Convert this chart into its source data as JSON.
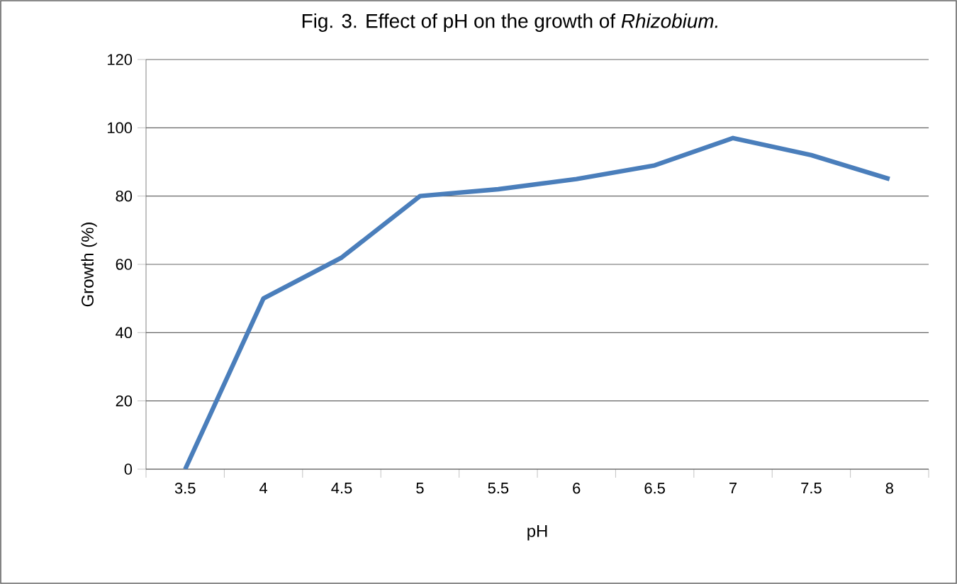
{
  "chart_data": {
    "type": "line",
    "title": "Fig. 3. Effect of pH on the growth of *Rhizobium.*",
    "xlabel": "pH",
    "ylabel": "Growth (%)",
    "categories": [
      "3.5",
      "4",
      "4.5",
      "5",
      "5.5",
      "6",
      "6.5",
      "7",
      "7.5",
      "8"
    ],
    "series": [
      {
        "color": "#4a7ebb",
        "values": [
          0,
          50,
          62,
          80,
          82,
          85,
          89,
          97,
          92,
          85
        ]
      }
    ],
    "ylim": [
      0,
      120
    ],
    "yticks": [
      0,
      20,
      40,
      60,
      80,
      100,
      120
    ],
    "grid": "y",
    "marker": "none",
    "line_style": "solid"
  }
}
